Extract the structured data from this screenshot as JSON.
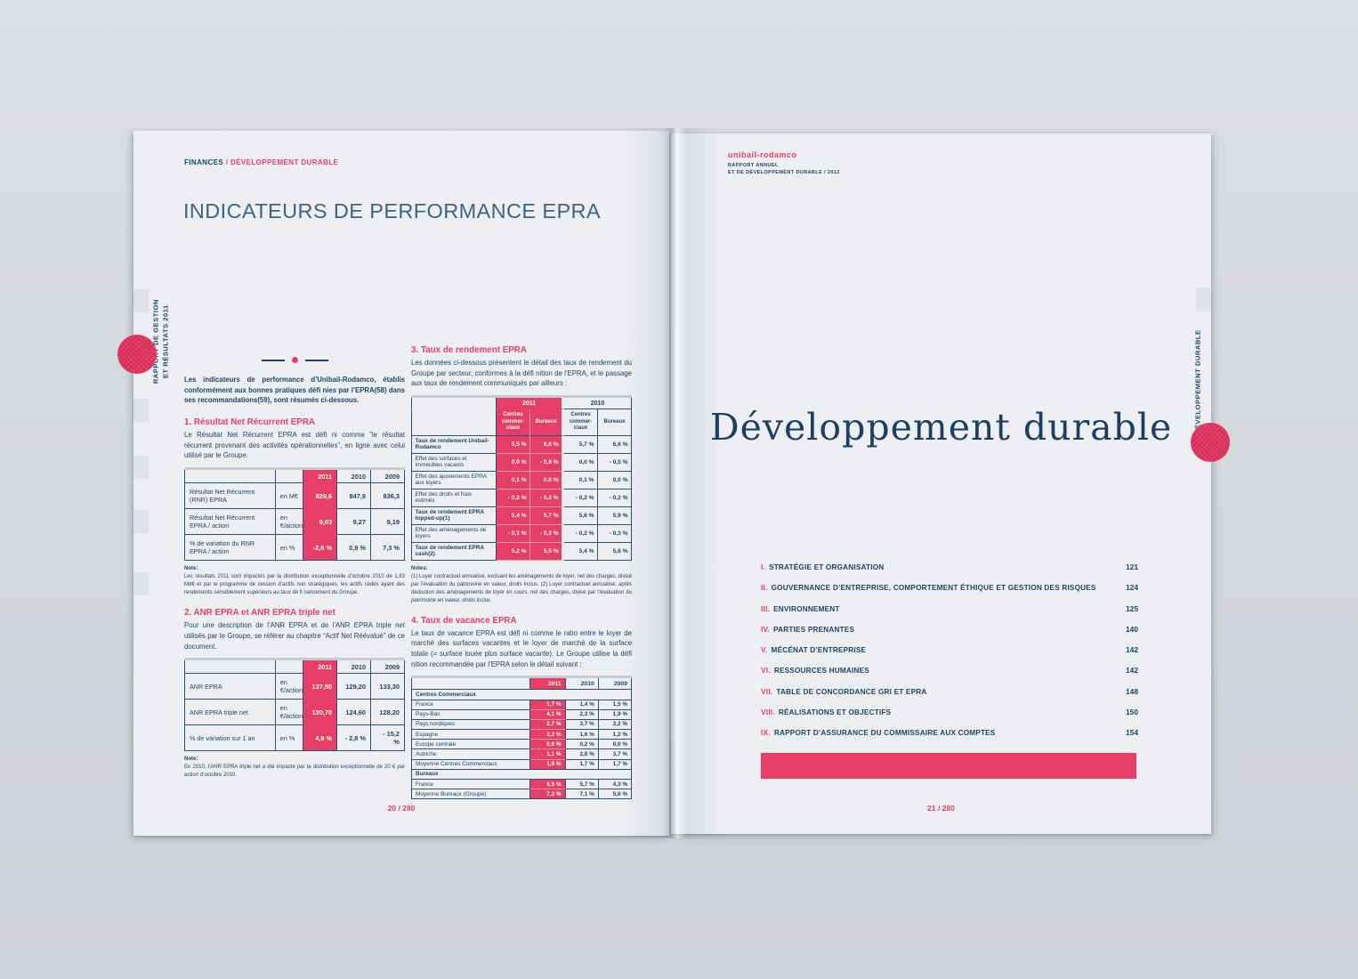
{
  "colors": {
    "pink": "#e73e67",
    "navy": "#1e4467",
    "steel": "#40647f",
    "page": "#edeff3"
  },
  "left_page": {
    "breadcrumb": {
      "section": "FINANCES",
      "separator": " / ",
      "subsection": "DÉVELOPPEMENT DURABLE"
    },
    "title": "INDICATEURS DE PERFORMANCE EPRA",
    "edge_label_line1": "RAPPORT DE GESTION",
    "edge_label_line2": "ET RÉSULTATS 2011",
    "intro": "Les indicateurs de performance d’Unibail-Rodamco, établis conformément aux bonnes pratiques défi nies par l’EPRA(58) dans ses recommandations(59), sont résumés ci-dessous.",
    "section1": {
      "heading": "1. Résultat Net Récurrent EPRA",
      "body": "Le Résultat Net Récurrent EPRA est défi ni comme “le résultat récurrent provenant des activités opérationnelles”, en ligne avec celui utilisé par le Groupe."
    },
    "table1": {
      "years": [
        "2011",
        "2010",
        "2009"
      ],
      "rows": [
        {
          "label": "Résultat Net Récurrent (RNR) EPRA",
          "unit": "en M€",
          "values": [
            "829,6",
            "847,9",
            "836,3"
          ]
        },
        {
          "label": "Résultat Net Récurrent EPRA / action",
          "unit": "en €/action",
          "values": [
            "9,03",
            "9,27",
            "9,19"
          ]
        },
        {
          "label": "% de variation du RNR EPRA / action",
          "unit": "en %",
          "values": [
            "-2,6 %",
            "0,9 %",
            "7,3 %"
          ]
        }
      ],
      "note_label": "Note:",
      "note": "Les résultats 2011 sont impactés par la distribution exceptionnelle d’octobre 2010 de 1,83 Md€ et par le programme de cession d’actifs non stratégiques, les actifs cédés ayant des rendements sensiblement supérieurs au taux de fi nancement du Groupe."
    },
    "section2": {
      "heading": "2. ANR EPRA et ANR EPRA triple net",
      "body": "Pour une description de l’ANR EPRA et de l’ANR EPRA triple net utilisés par le Groupe, se référer au chapitre “Actif Net Réévalué” de ce document."
    },
    "table2": {
      "years": [
        "2011",
        "2010",
        "2009"
      ],
      "rows": [
        {
          "label": "ANR EPRA",
          "unit": "en €/action",
          "values": [
            "137,50",
            "129,20",
            "133,30"
          ]
        },
        {
          "label": "ANR EPRA triple net",
          "unit": "en €/action",
          "values": [
            "130,70",
            "124,60",
            "128,20"
          ]
        },
        {
          "label": "% de variation sur 1 an",
          "unit": "en %",
          "values": [
            "4,9 %",
            "- 2,8 %",
            "- 15,2 %"
          ]
        }
      ],
      "note_label": "Note:",
      "note": "En 2010, l’ANR EPRA triple net a été impacté par la distribution exceptionnelle de 20 € par action d’octobre 2010."
    },
    "section3": {
      "heading": "3. Taux de rendement EPRA",
      "body": "Les données ci-dessous présentent le détail des taux de rendement du Groupe par secteur, conformes à la défi nition de l’EPRA, et le passage aux taux de rendement communiqués par ailleurs :"
    },
    "table3": {
      "years": [
        "2011",
        "2010"
      ],
      "subheaders": [
        "Centres\ncommer-\nciaux",
        "Bureaux"
      ],
      "rows": [
        {
          "label": "Taux de rendement Unibail-Rodamco",
          "bold": true,
          "values": [
            "5,5 %",
            "6,6 %",
            "5,7 %",
            "6,6 %"
          ]
        },
        {
          "label": "Effet des surfaces et immeubles vacants",
          "bold": false,
          "values": [
            "0,0 %",
            "- 0,8 %",
            "0,0 %",
            "- 0,5 %"
          ]
        },
        {
          "label": "Effet des ajustements EPRA aux loyers",
          "bold": false,
          "values": [
            "0,1 %",
            "0,0 %",
            "0,1 %",
            "0,0 %"
          ]
        },
        {
          "label": "Effet des droits et frais estimés",
          "bold": false,
          "values": [
            "- 0,2 %",
            "- 0,2 %",
            "- 0,2 %",
            "- 0,2 %"
          ]
        },
        {
          "label": "Taux de rendement EPRA topped-up(1)",
          "bold": true,
          "values": [
            "5,4 %",
            "5,7 %",
            "5,6 %",
            "5,9 %"
          ]
        },
        {
          "label": "Effet des aménagements de loyers",
          "bold": false,
          "values": [
            "- 0,1 %",
            "- 0,2 %",
            "- 0,2 %",
            "- 0,3 %"
          ]
        },
        {
          "label": "Taux de rendement EPRA cash(2)",
          "bold": true,
          "values": [
            "5,2 %",
            "5,5 %",
            "5,4 %",
            "5,6 %"
          ]
        }
      ],
      "notes_label": "Notes:",
      "notes": "(1) Loyer contractuel annualisé, excluant les aménagements de loyer, net des charges, divisé par l’évaluation du patrimoine en valeur, droits inclus. (2) Loyer contractuel annualisé, après déduction des aménagements de loyer en cours, net des charges, divisé par l’évaluation du patrimoine en valeur, droits inclus"
    },
    "section4": {
      "heading": "4. Taux de vacance EPRA",
      "body": "Le taux de vacance EPRA est défi ni comme le ratio entre le loyer de marché des surfaces vacantes et le loyer de marché de la surface totale (= surface louée plus surface vacante). Le Groupe utilise la défi nition recommandée par l’EPRA selon le détail suivant :"
    },
    "table4": {
      "years": [
        "2011",
        "2010",
        "2009"
      ],
      "groups": [
        {
          "name": "Centres Commerciaux",
          "rows": [
            {
              "label": "France",
              "values": [
                "1,7 %",
                "1,4 %",
                "1,5 %"
              ]
            },
            {
              "label": "Pays-Bas",
              "values": [
                "4,1 %",
                "2,3 %",
                "1,9 %"
              ]
            },
            {
              "label": "Pays nordiques",
              "values": [
                "2,7 %",
                "3,7 %",
                "3,2 %"
              ]
            },
            {
              "label": "Espagne",
              "values": [
                "2,2 %",
                "1,6 %",
                "1,2 %"
              ]
            },
            {
              "label": "Europe centrale",
              "values": [
                "0,6 %",
                "0,2 %",
                "0,0 %"
              ]
            },
            {
              "label": "Autriche",
              "values": [
                "1,1 %",
                "2,8 %",
                "3,7 %"
              ]
            },
            {
              "label": "Moyenne Centres Commerciaux",
              "values": [
                "1,9 %",
                "1,7 %",
                "1,7 %"
              ]
            }
          ]
        },
        {
          "name": "Bureaux",
          "rows": [
            {
              "label": "France",
              "values": [
                "6,5 %",
                "5,7 %",
                "4,3 %"
              ]
            },
            {
              "label": "Moyenne Bureaux (Groupe)",
              "values": [
                "7,3 %",
                "7,1 %",
                "5,6 %"
              ]
            }
          ]
        }
      ]
    },
    "page_number": "20 / 280"
  },
  "right_page": {
    "logo": "unibail-rodamco",
    "logo_sub1": "RAPPORT ANNUEL",
    "logo_sub2": "ET DE DÉVELOPPEMENT DURABLE / 2012",
    "title": "Développement durable",
    "edge_label": "DÉVELOPPEMENT DURABLE",
    "toc": [
      {
        "num": "I.",
        "label": "STRATÉGIE ET ORGANISATION",
        "page": "121"
      },
      {
        "num": "II.",
        "label": "GOUVERNANCE D’ENTREPRISE, COMPORTEMENT ÉTHIQUE ET GESTION DES RISQUES",
        "page": "124"
      },
      {
        "num": "III.",
        "label": "ENVIRONNEMENT",
        "page": "125"
      },
      {
        "num": "IV.",
        "label": "PARTIES PRENANTES",
        "page": "140"
      },
      {
        "num": "V.",
        "label": "MÉCÉNAT D’ENTREPRISE",
        "page": "142"
      },
      {
        "num": "VI.",
        "label": "RESSOURCES HUMAINES",
        "page": "142"
      },
      {
        "num": "VII.",
        "label": "TABLE DE CONCORDANCE GRI ET EPRA",
        "page": "148"
      },
      {
        "num": "VIII.",
        "label": "RÉALISATIONS ET OBJECTIFS",
        "page": "150"
      },
      {
        "num": "IX.",
        "label": "RAPPORT D’ASSURANCE DU COMMISSAIRE AUX COMPTES",
        "page": "154"
      }
    ],
    "page_number": "21 / 280"
  }
}
